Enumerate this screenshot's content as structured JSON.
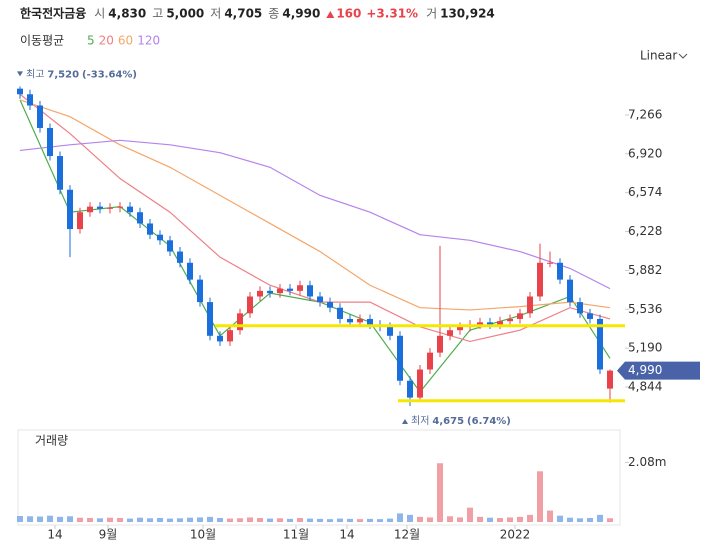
{
  "header": {
    "name": "한국전자금융",
    "items": [
      {
        "label": "시",
        "value": "4,830"
      },
      {
        "label": "고",
        "value": "5,000"
      },
      {
        "label": "저",
        "value": "4,705"
      },
      {
        "label": "종",
        "value": "4,990"
      }
    ],
    "change": "160",
    "change_pct": "+3.31%",
    "volume_label": "거",
    "volume": "130,924"
  },
  "scale_menu": "Linear",
  "ma_legend_title": "이동평균",
  "chart_data": {
    "type": "candlestick",
    "xlim": [
      -0.5,
      60.5
    ],
    "xticks": [
      {
        "value": 3.5,
        "label": "14"
      },
      {
        "value": 8.8,
        "label": "9월"
      },
      {
        "value": 18.3,
        "label": "10월"
      },
      {
        "value": 27.6,
        "label": "11월"
      },
      {
        "value": 32.7,
        "label": "14"
      },
      {
        "value": 38.7,
        "label": "12월"
      },
      {
        "value": 49.5,
        "label": "2022"
      }
    ],
    "ylim": [
      4595,
      7577
    ],
    "yticks": [
      {
        "value": 7266,
        "label": "7,266"
      },
      {
        "value": 6920,
        "label": "6,920"
      },
      {
        "value": 6574,
        "label": "6,574"
      },
      {
        "value": 6228,
        "label": "6,228"
      },
      {
        "value": 5882,
        "label": "5,882"
      },
      {
        "value": 5536,
        "label": "5,536"
      },
      {
        "value": 5190,
        "label": "5,190"
      },
      {
        "value": 4844,
        "label": "4,844"
      }
    ],
    "up_color": "#e8434b",
    "down_color": "#1a6fdc",
    "open": [
      7500,
      7450,
      7350,
      7150,
      6900,
      6600,
      6250,
      6400,
      6450,
      6430,
      6440,
      6450,
      6400,
      6300,
      6200,
      6150,
      6050,
      5950,
      5800,
      5600,
      5300,
      5250,
      5350,
      5500,
      5650,
      5700,
      5680,
      5720,
      5700,
      5750,
      5650,
      5600,
      5550,
      5450,
      5420,
      5450,
      5400,
      5380,
      5300,
      4900,
      4750,
      5000,
      5150,
      5300,
      5350,
      5380,
      5400,
      5420,
      5400,
      5430,
      5450,
      5500,
      5650,
      5950,
      5950,
      5800,
      5600,
      5500,
      5450,
      4830
    ],
    "high": [
      7520,
      7490,
      7390,
      7190,
      6940,
      6640,
      6440,
      6490,
      6490,
      6480,
      6490,
      6490,
      6440,
      6340,
      6240,
      6190,
      6090,
      5990,
      5840,
      5640,
      5340,
      5390,
      5540,
      5690,
      5740,
      5740,
      5760,
      5760,
      5790,
      5790,
      5690,
      5640,
      5590,
      5490,
      5490,
      5490,
      5440,
      5420,
      5340,
      4940,
      5040,
      5190,
      6100,
      5390,
      5420,
      5440,
      5460,
      5460,
      5470,
      5490,
      5540,
      5690,
      6120,
      6050,
      5990,
      5840,
      5640,
      5540,
      5490,
      5000
    ],
    "low": [
      7410,
      7310,
      7110,
      6860,
      6560,
      6000,
      6210,
      6360,
      6390,
      6390,
      6400,
      6360,
      6260,
      6160,
      6110,
      6010,
      5910,
      5760,
      5560,
      5260,
      5210,
      5210,
      5310,
      5460,
      5610,
      5640,
      5640,
      5660,
      5660,
      5610,
      5560,
      5510,
      5410,
      5380,
      5380,
      5360,
      5340,
      5260,
      4860,
      4675,
      4710,
      4960,
      5110,
      5260,
      5310,
      5340,
      5360,
      5360,
      5360,
      5390,
      5410,
      5460,
      5610,
      5910,
      5760,
      5560,
      5460,
      5410,
      4960,
      4705
    ],
    "close": [
      7450,
      7350,
      7150,
      6900,
      6600,
      6250,
      6400,
      6450,
      6430,
      6440,
      6450,
      6400,
      6300,
      6200,
      6150,
      6050,
      5950,
      5800,
      5600,
      5300,
      5250,
      5350,
      5500,
      5650,
      5700,
      5680,
      5720,
      5700,
      5750,
      5650,
      5600,
      5550,
      5450,
      5420,
      5450,
      5400,
      5380,
      5300,
      4900,
      4750,
      5000,
      5150,
      5300,
      5350,
      5380,
      5400,
      5420,
      5400,
      5430,
      5450,
      5500,
      5650,
      5950,
      5950,
      5800,
      5600,
      5500,
      5450,
      5000,
      4990
    ],
    "ma_series": [
      {
        "name": "5",
        "color": "#4cae4c",
        "x": [
          0,
          5,
          10,
          15,
          20,
          25,
          30,
          35,
          40,
          45,
          50,
          55,
          59
        ],
        "values": [
          7400,
          6400,
          6450,
          6100,
          5300,
          5680,
          5600,
          5420,
          4800,
          5350,
          5480,
          5650,
          5100
        ]
      },
      {
        "name": "20",
        "color": "#ef7f86",
        "x": [
          0,
          5,
          10,
          15,
          20,
          25,
          30,
          35,
          40,
          45,
          50,
          55,
          59
        ],
        "values": [
          7450,
          7100,
          6700,
          6400,
          6000,
          5750,
          5600,
          5600,
          5380,
          5250,
          5350,
          5550,
          5450
        ]
      },
      {
        "name": "60",
        "color": "#f5a66a",
        "x": [
          0,
          5,
          10,
          15,
          20,
          25,
          30,
          35,
          40,
          45,
          50,
          55,
          59
        ],
        "values": [
          7400,
          7250,
          7000,
          6800,
          6550,
          6300,
          6050,
          5750,
          5550,
          5530,
          5560,
          5600,
          5550
        ]
      },
      {
        "name": "120",
        "color": "#b583ec",
        "x": [
          0,
          5,
          10,
          15,
          20,
          25,
          30,
          35,
          40,
          45,
          50,
          55,
          59
        ],
        "values": [
          6950,
          7000,
          7040,
          7000,
          6930,
          6800,
          6550,
          6400,
          6200,
          6150,
          6050,
          5900,
          5720
        ]
      }
    ],
    "hlines": [
      {
        "value": 5390,
        "start": 19.5,
        "color": "#f5e800"
      },
      {
        "value": 4722,
        "start": 37.8,
        "color": "#f5e800"
      }
    ],
    "high_note": {
      "label": "최고",
      "price": "7,520",
      "change": "(-33.64%)"
    },
    "low_note": {
      "label": "최저",
      "price": "4,675",
      "change": "(6.74%)"
    },
    "last_price_label": "4,990",
    "volume": {
      "title": "거래량",
      "ylim": [
        0,
        3140000
      ],
      "yticks": [
        {
          "value": 2080000,
          "label": "2.08m"
        }
      ],
      "values": [
        210000,
        200000,
        190000,
        220000,
        180000,
        200000,
        150000,
        140000,
        130000,
        150000,
        140000,
        120000,
        150000,
        130000,
        140000,
        120000,
        130000,
        150000,
        160000,
        180000,
        140000,
        120000,
        130000,
        160000,
        140000,
        120000,
        130000,
        110000,
        140000,
        120000,
        110000,
        100000,
        120000,
        110000,
        100000,
        110000,
        100000,
        120000,
        300000,
        250000,
        180000,
        160000,
        2050000,
        200000,
        160000,
        500000,
        180000,
        150000,
        140000,
        160000,
        180000,
        250000,
        1770000,
        400000,
        220000,
        150000,
        130000,
        140000,
        250000,
        130924
      ]
    }
  }
}
